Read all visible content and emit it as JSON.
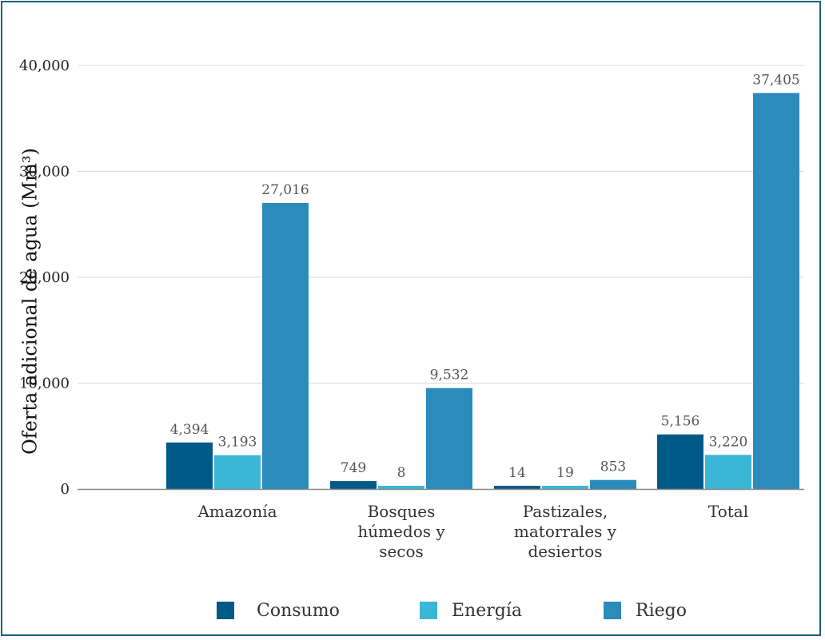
{
  "colors": {
    "border": "#1f5f7a",
    "grid": "#d9d9d9",
    "axis": "#888888"
  },
  "chart_data": {
    "type": "bar",
    "ylabel": "Oferta adicional de agua (Mm³)",
    "ylim": [
      0,
      40000
    ],
    "yticks": [
      0,
      10000,
      20000,
      30000,
      40000
    ],
    "ytick_labels": [
      "0",
      "10,000",
      "20,000",
      "30,000",
      "40,000"
    ],
    "grid": "horizontal",
    "legend_position": "bottom",
    "categories": [
      [
        "Amazonía"
      ],
      [
        "Bosques",
        "húmedos y",
        "secos"
      ],
      [
        "Pastizales,",
        "matorrales y",
        "desiertos"
      ],
      [
        "Total"
      ]
    ],
    "series": [
      {
        "name": "Consumo",
        "color": "#005a87",
        "values": [
          4394,
          749,
          14,
          5156
        ],
        "labels": [
          "4,394",
          "749",
          "14",
          "5,156"
        ]
      },
      {
        "name": "Energía",
        "color": "#3cb6d6",
        "values": [
          3193,
          8,
          19,
          3220
        ],
        "labels": [
          "3,193",
          "8",
          "19",
          "3,220"
        ]
      },
      {
        "name": "Riego",
        "color": "#2b8bba",
        "values": [
          27016,
          9532,
          853,
          37405
        ],
        "labels": [
          "27,016",
          "9,532",
          "853",
          "37,405"
        ]
      }
    ]
  }
}
